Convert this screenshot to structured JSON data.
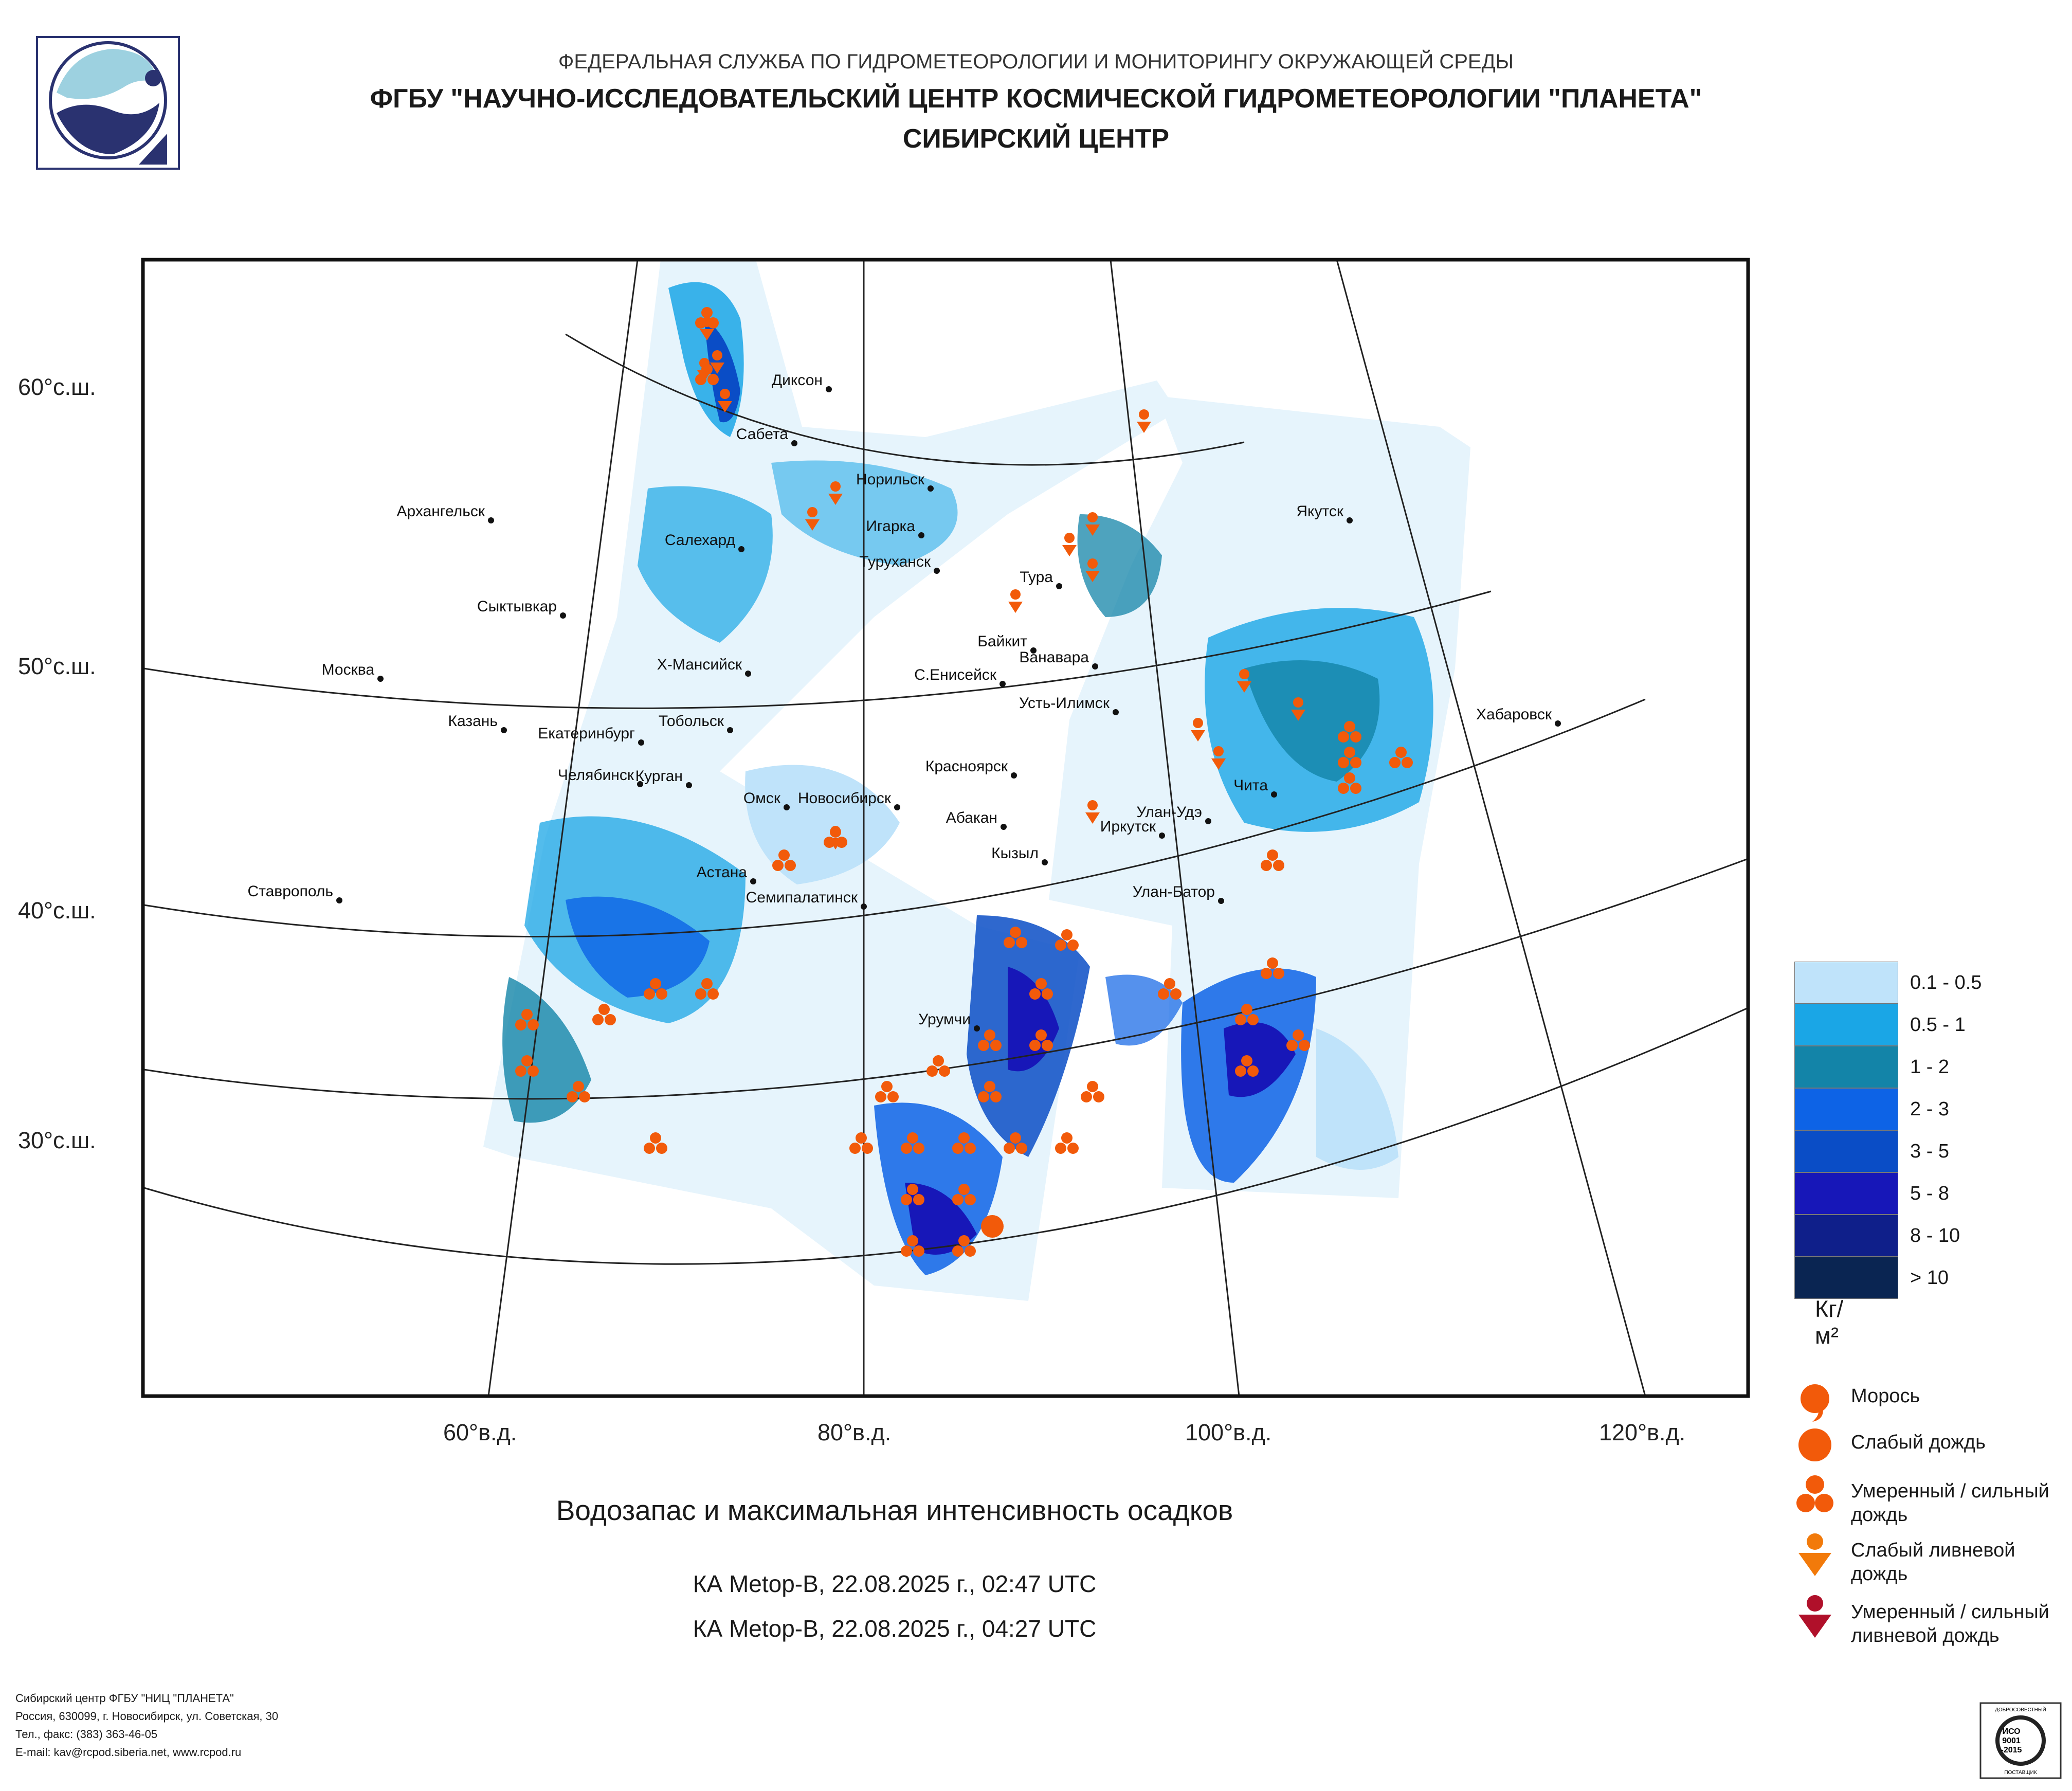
{
  "header": {
    "line1": "ФЕДЕРАЛЬНАЯ СЛУЖБА ПО ГИДРОМЕТЕОРОЛОГИИ И МОНИТОРИНГУ ОКРУЖАЮЩЕЙ СРЕДЫ",
    "line2": "ФГБУ \"НАУЧНО-ИССЛЕДОВАТЕЛЬСКИЙ ЦЕНТР КОСМИЧЕСКОЙ ГИДРОМЕТЕОРОЛОГИИ \"ПЛАНЕТА\"",
    "line3": "СИБИРСКИЙ ЦЕНТР"
  },
  "map": {
    "lat_labels": [
      "60°с.ш.",
      "50°с.ш.",
      "40°с.ш.",
      "30°с.ш."
    ],
    "lon_labels": [
      "60°в.д.",
      "80°в.д.",
      "100°в.д.",
      "120°в.д."
    ],
    "cities": [
      "Диксон",
      "Сабета",
      "Норильск",
      "Салехард",
      "Игарка",
      "Туруханск",
      "Архангельск",
      "Якутск",
      "Тура",
      "Сыктывкар",
      "Байкит",
      "Ванавара",
      "Москва",
      "Х-Мансийск",
      "С.Енисейск",
      "Усть-Илимск",
      "Казань",
      "Екатеринбург",
      "Тобольск",
      "Хабаровск",
      "Челябинск",
      "Курган",
      "Красноярск",
      "Омск",
      "Новосибирск",
      "Чита",
      "Улан-Удэ",
      "Абакан",
      "Иркутск",
      "Кызыл",
      "Астана",
      "Ставрополь",
      "Семипалатинск",
      "Улан-Батор",
      "Урумчи"
    ]
  },
  "legend": {
    "unit": "Кг/м²",
    "scale": [
      {
        "label": "0.1 - 0.5",
        "color": "#bfe3fa"
      },
      {
        "label": "0.5 - 1",
        "color": "#1aa6e6"
      },
      {
        "label": "1 - 2",
        "color": "#1384a8"
      },
      {
        "label": "2 - 3",
        "color": "#0d63e6"
      },
      {
        "label": "3 - 5",
        "color": "#0a4dc6"
      },
      {
        "label": "5 - 8",
        "color": "#1717b8"
      },
      {
        "label": "8 - 10",
        "color": "#0f1f8a"
      },
      {
        "label": "> 10",
        "color": "#0a2552"
      }
    ],
    "symbols": [
      {
        "label": "Морось",
        "icon": "drizzle-icon",
        "color": "#f25a0a"
      },
      {
        "label": "Слабый дождь",
        "icon": "light-rain-icon",
        "color": "#f25a0a"
      },
      {
        "label": "Умеренный / сильный дождь",
        "icon": "moderate-rain-icon",
        "color": "#f25a0a"
      },
      {
        "label": "Слабый ливневой дождь",
        "icon": "light-shower-icon",
        "color": "#f27a0a"
      },
      {
        "label": "Умеренный / сильный ливневой дождь",
        "icon": "heavy-shower-icon",
        "color": "#b0102a"
      }
    ]
  },
  "caption": "Водозапас и максимальная интенсивность осадков",
  "satellites": [
    "КА Metop-B, 22.08.2025 г., 02:47 UTC",
    "КА Metop-B, 22.08.2025 г., 04:27 UTC"
  ],
  "contacts": [
    "Сибирский центр ФГБУ \"НИЦ \"ПЛАНЕТА\"",
    "Россия, 630099, г. Новосибирск, ул. Советская, 30",
    "Тел., факс: (383) 363-46-05",
    "E-mail: kav@rcpod.siberia.net, www.rcpod.ru"
  ],
  "iso_badge": {
    "top": "ДОБРОСОВЕСТНЫЙ",
    "lines": [
      "ИСО",
      "9001",
      "-2015"
    ],
    "bottom": "ПОСТАВЩИК"
  }
}
